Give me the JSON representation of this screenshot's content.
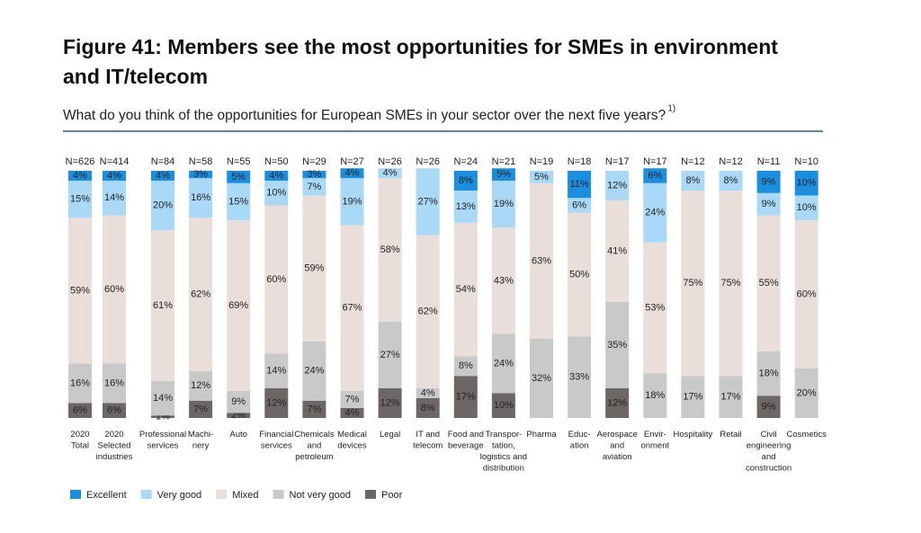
{
  "chart_data": {
    "type": "stacked_bar",
    "title": "Figure 41: Members see the most opportunities for SMEs in environment and IT/telecom",
    "subtitle": "What do you think of the opportunities for European SMEs in your sector over the next five years?",
    "footnote_marker": "1)",
    "categories": [
      "2020\nTotal",
      "2020\nSelected\nindustries",
      "Professional\nservices",
      "Machi-\nnery",
      "Auto",
      "Financial\nservices",
      "Chemicals\nand\npetroleum",
      "Medical\ndevices",
      "Legal",
      "IT and\ntelecom",
      "Food and\nbeverage",
      "Transpor-\ntation,\nlogistics and\ndistribution",
      "Pharma",
      "Educ-\nation",
      "Aerospace\nand\naviation",
      "Envir-\nonment",
      "Hospitality",
      "Retail",
      "Civil\nengineering\nand\nconstruction",
      "Cosmetics"
    ],
    "n_labels": [
      "N=626",
      "N=414",
      "N=84",
      "N=58",
      "N=55",
      "N=50",
      "N=29",
      "N=27",
      "N=26",
      "N=26",
      "N=24",
      "N=21",
      "N=19",
      "N=18",
      "N=17",
      "N=17",
      "N=12",
      "N=12",
      "N=11",
      "N=10"
    ],
    "ylim": [
      0,
      100
    ],
    "series": [
      {
        "name": "Excellent",
        "color": "#1a8fe0",
        "values": [
          4,
          4,
          4,
          3,
          5,
          4,
          3,
          4,
          0,
          0,
          8,
          5,
          0,
          11,
          0,
          6,
          0,
          0,
          9,
          10
        ],
        "value_labels": [
          "4%",
          "4%",
          "4%",
          "3%",
          "5%",
          "4%",
          "3%",
          "4%",
          null,
          null,
          "8%",
          "5%",
          null,
          "11%",
          null,
          "6%",
          null,
          null,
          "9%",
          "10%"
        ]
      },
      {
        "name": "Very good",
        "color": "#a9d9f7",
        "values": [
          15,
          14,
          20,
          16,
          15,
          10,
          7,
          19,
          4,
          27,
          13,
          19,
          5,
          6,
          12,
          24,
          8,
          8,
          9,
          10
        ],
        "value_labels": [
          "15%",
          "14%",
          "20%",
          "16%",
          "15%",
          "10%",
          "7%",
          "19%",
          "4%",
          "27%",
          "13%",
          "19%",
          "5%",
          "6%",
          "12%",
          "24%",
          "8%",
          "8%",
          "9%",
          "10%"
        ]
      },
      {
        "name": "Mixed",
        "color": "#e9ded9",
        "values": [
          59,
          60,
          61,
          62,
          69,
          60,
          59,
          67,
          58,
          62,
          54,
          43,
          63,
          50,
          41,
          53,
          75,
          75,
          55,
          60
        ],
        "value_labels": [
          "59%",
          "60%",
          "61%",
          "62%",
          "69%",
          "60%",
          "59%",
          "67%",
          "58%",
          "62%",
          "54%",
          "43%",
          "63%",
          "50%",
          "41%",
          "53%",
          "75%",
          "75%",
          "55%",
          "60%"
        ]
      },
      {
        "name": "Not very good",
        "color": "#c9c9c9",
        "values": [
          16,
          16,
          14,
          12,
          9,
          14,
          24,
          7,
          27,
          4,
          8,
          24,
          32,
          33,
          35,
          18,
          17,
          17,
          18,
          20
        ],
        "value_labels": [
          "16%",
          "16%",
          "14%",
          "12%",
          "9%",
          "14%",
          "24%",
          "7%",
          "27%",
          "4%",
          "8%",
          "24%",
          "32%",
          "33%",
          "35%",
          "18%",
          "17%",
          "17%",
          "18%",
          "20%"
        ]
      },
      {
        "name": "Poor",
        "color": "#6c6666",
        "values": [
          6,
          6,
          1,
          7,
          2,
          12,
          7,
          4,
          12,
          8,
          17,
          10,
          0,
          0,
          12,
          0,
          0,
          0,
          9,
          0
        ],
        "value_labels": [
          "6%",
          "6%",
          "1%",
          "7%",
          "2%",
          "12%",
          "7%",
          "4%",
          "12%",
          "8%",
          "17%",
          "10%",
          null,
          null,
          "12%",
          null,
          null,
          null,
          "9%",
          null
        ]
      }
    ]
  }
}
